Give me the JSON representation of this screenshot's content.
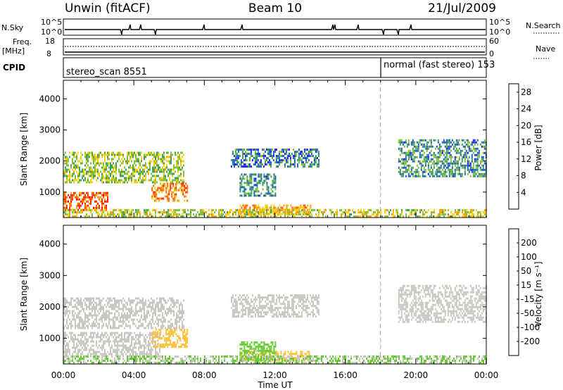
{
  "header": {
    "station": "Unwin (fitACF)",
    "beam": "Beam 10",
    "date": "21/Jul/2009"
  },
  "noise_panel": {
    "left_label": "N.Sky",
    "right_label": "N.Search",
    "left_ticks": [
      "10^5",
      "10^0"
    ],
    "right_ticks": [
      "10^5",
      "10^0"
    ]
  },
  "freq_panel": {
    "left_label_line1": "Freq.",
    "left_label_line2": "[MHz]",
    "right_label": "Nave",
    "left_ticks": [
      "18",
      "8"
    ],
    "right_ticks": [
      "60",
      "0"
    ]
  },
  "cpid_panel": {
    "label": "CPID",
    "segments": [
      {
        "name": "stereo_scan",
        "id": "8551"
      },
      {
        "name": "normal (fast stereo)",
        "id": "153"
      }
    ]
  },
  "colors": {
    "power_scale": [
      "#1a1aff",
      "#1f5fbf",
      "#3fa05a",
      "#7fc040",
      "#ffd000",
      "#ff9f00",
      "#ff6600",
      "#ff2a00",
      "#ff0000"
    ],
    "velocity_scale": [
      "#ff0000",
      "#ff5a00",
      "#ff9a00",
      "#ffbf33",
      "#c8c8c0",
      "#66cc33",
      "#33aa33",
      "#4466cc",
      "#2233cc"
    ],
    "ground_scatter": "#c8c8c0"
  },
  "chart_data": [
    {
      "type": "heatmap",
      "quantity": "Power",
      "ylabel": "Slant Range [km]",
      "xlabel": "Time UT",
      "xticks": [
        "00:00",
        "04:00",
        "08:00",
        "12:00",
        "16:00",
        "20:00",
        "00:00"
      ],
      "yticks": [
        "1000",
        "2000",
        "3000",
        "4000"
      ],
      "ylim": [
        180,
        4600
      ],
      "xlim_hours": [
        0,
        24
      ],
      "colorbar_label": "Power [dB]",
      "colorbar_ticks": [
        "4",
        "8",
        "12",
        "16",
        "20",
        "24",
        "28"
      ],
      "colorbar_range": [
        0,
        30
      ],
      "regions": [
        {
          "t": [
            0.0,
            6.8
          ],
          "r": [
            1300,
            2300
          ],
          "level": 12
        },
        {
          "t": [
            0.0,
            2.5
          ],
          "r": [
            450,
            1000
          ],
          "level": 22
        },
        {
          "t": [
            5.0,
            7.0
          ],
          "r": [
            700,
            1300
          ],
          "level": 20
        },
        {
          "t": [
            9.5,
            14.5
          ],
          "r": [
            1800,
            2400
          ],
          "level": 6
        },
        {
          "t": [
            10.0,
            12.0
          ],
          "r": [
            900,
            1600
          ],
          "level": 8
        },
        {
          "t": [
            10.0,
            14.0
          ],
          "r": [
            300,
            600
          ],
          "level": 18
        },
        {
          "t": [
            19.0,
            24.0
          ],
          "r": [
            1500,
            2700
          ],
          "level": 8
        },
        {
          "t": [
            0.0,
            24.0
          ],
          "r": [
            200,
            450
          ],
          "level": 14
        }
      ]
    },
    {
      "type": "heatmap",
      "quantity": "Velocity",
      "ylabel": "Slant Range [km]",
      "xlabel": "Time UT",
      "xticks": [
        "00:00",
        "04:00",
        "08:00",
        "12:00",
        "16:00",
        "20:00",
        "00:00"
      ],
      "yticks": [
        "1000",
        "2000",
        "3000",
        "4000"
      ],
      "ylim": [
        180,
        4600
      ],
      "xlim_hours": [
        0,
        24
      ],
      "colorbar_label": "Velocity [m s⁻¹]",
      "colorbar_ticks": [
        "200",
        "100",
        "50",
        "15",
        "-15",
        "-50",
        "-100",
        "-200"
      ],
      "colorbar_range": [
        -250,
        250
      ],
      "regions": [
        {
          "t": [
            0.0,
            6.8
          ],
          "r": [
            1300,
            2300
          ],
          "level": 0
        },
        {
          "t": [
            0.0,
            5.5
          ],
          "r": [
            450,
            1200
          ],
          "level": 0
        },
        {
          "t": [
            5.0,
            7.0
          ],
          "r": [
            700,
            1300
          ],
          "level": -60
        },
        {
          "t": [
            9.5,
            14.5
          ],
          "r": [
            1700,
            2400
          ],
          "level": 0
        },
        {
          "t": [
            10.0,
            14.0
          ],
          "r": [
            300,
            600
          ],
          "level": -60
        },
        {
          "t": [
            10.0,
            12.0
          ],
          "r": [
            300,
            900
          ],
          "level": 40
        },
        {
          "t": [
            19.0,
            24.0
          ],
          "r": [
            1500,
            2700
          ],
          "level": 0
        },
        {
          "t": [
            0.0,
            24.0
          ],
          "r": [
            200,
            450
          ],
          "level": 30
        }
      ]
    }
  ]
}
